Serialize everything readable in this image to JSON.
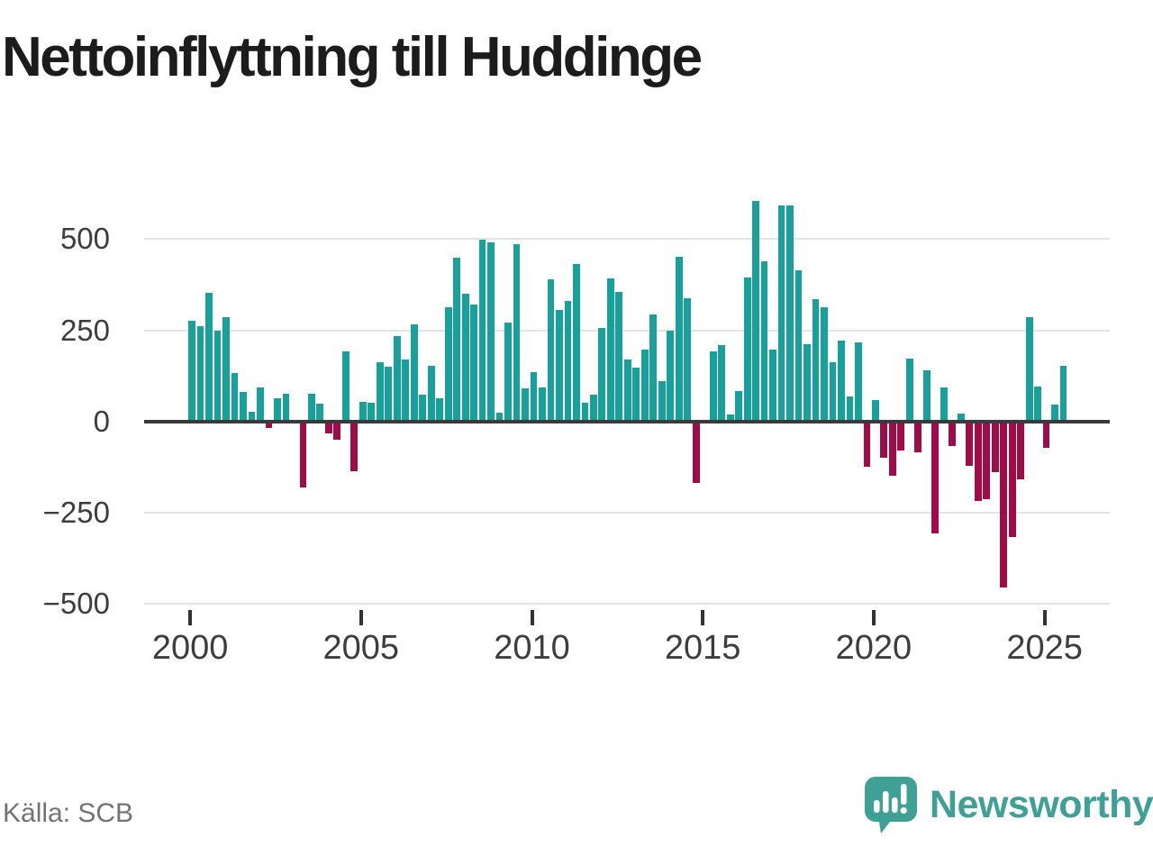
{
  "title": "Nettoinflyttning till Huddinge",
  "source": "Källa: SCB",
  "brand": {
    "name": "Newsworthy",
    "color": "#3fa096"
  },
  "chart_data": {
    "type": "bar",
    "title": "Nettoinflyttning till Huddinge",
    "x_start": "2000-Q1",
    "x_frequency": "quarterly",
    "values": [
      275,
      260,
      352,
      248,
      287,
      132,
      81,
      27,
      93,
      -12,
      64,
      77,
      0,
      -177,
      77,
      48,
      -29,
      -45,
      191,
      -131,
      54,
      50,
      163,
      151,
      233,
      169,
      265,
      73,
      153,
      64,
      313,
      450,
      349,
      320,
      499,
      491,
      25,
      271,
      485,
      91,
      136,
      93,
      390,
      305,
      330,
      431,
      50,
      74,
      256,
      392,
      355,
      169,
      148,
      198,
      293,
      111,
      248,
      452,
      338,
      -165,
      0,
      192,
      209,
      18,
      83,
      394,
      605,
      440,
      198,
      591,
      592,
      415,
      211,
      334,
      314,
      163,
      221,
      68,
      217,
      -120,
      58,
      -95,
      -144,
      -76,
      172,
      -80,
      140,
      -301,
      93,
      -62,
      21,
      -117,
      -212,
      -208,
      -134,
      -450,
      -311,
      -154,
      285,
      95,
      -68,
      45,
      153
    ],
    "xticks": [
      2000,
      2005,
      2010,
      2015,
      2020,
      2025
    ],
    "yticks": [
      500,
      250,
      0,
      -250,
      -500
    ],
    "ylim": [
      -500,
      620
    ],
    "grid": true,
    "legend": false,
    "colors": {
      "positive": "#18a09a",
      "negative": "#a00c48"
    }
  }
}
